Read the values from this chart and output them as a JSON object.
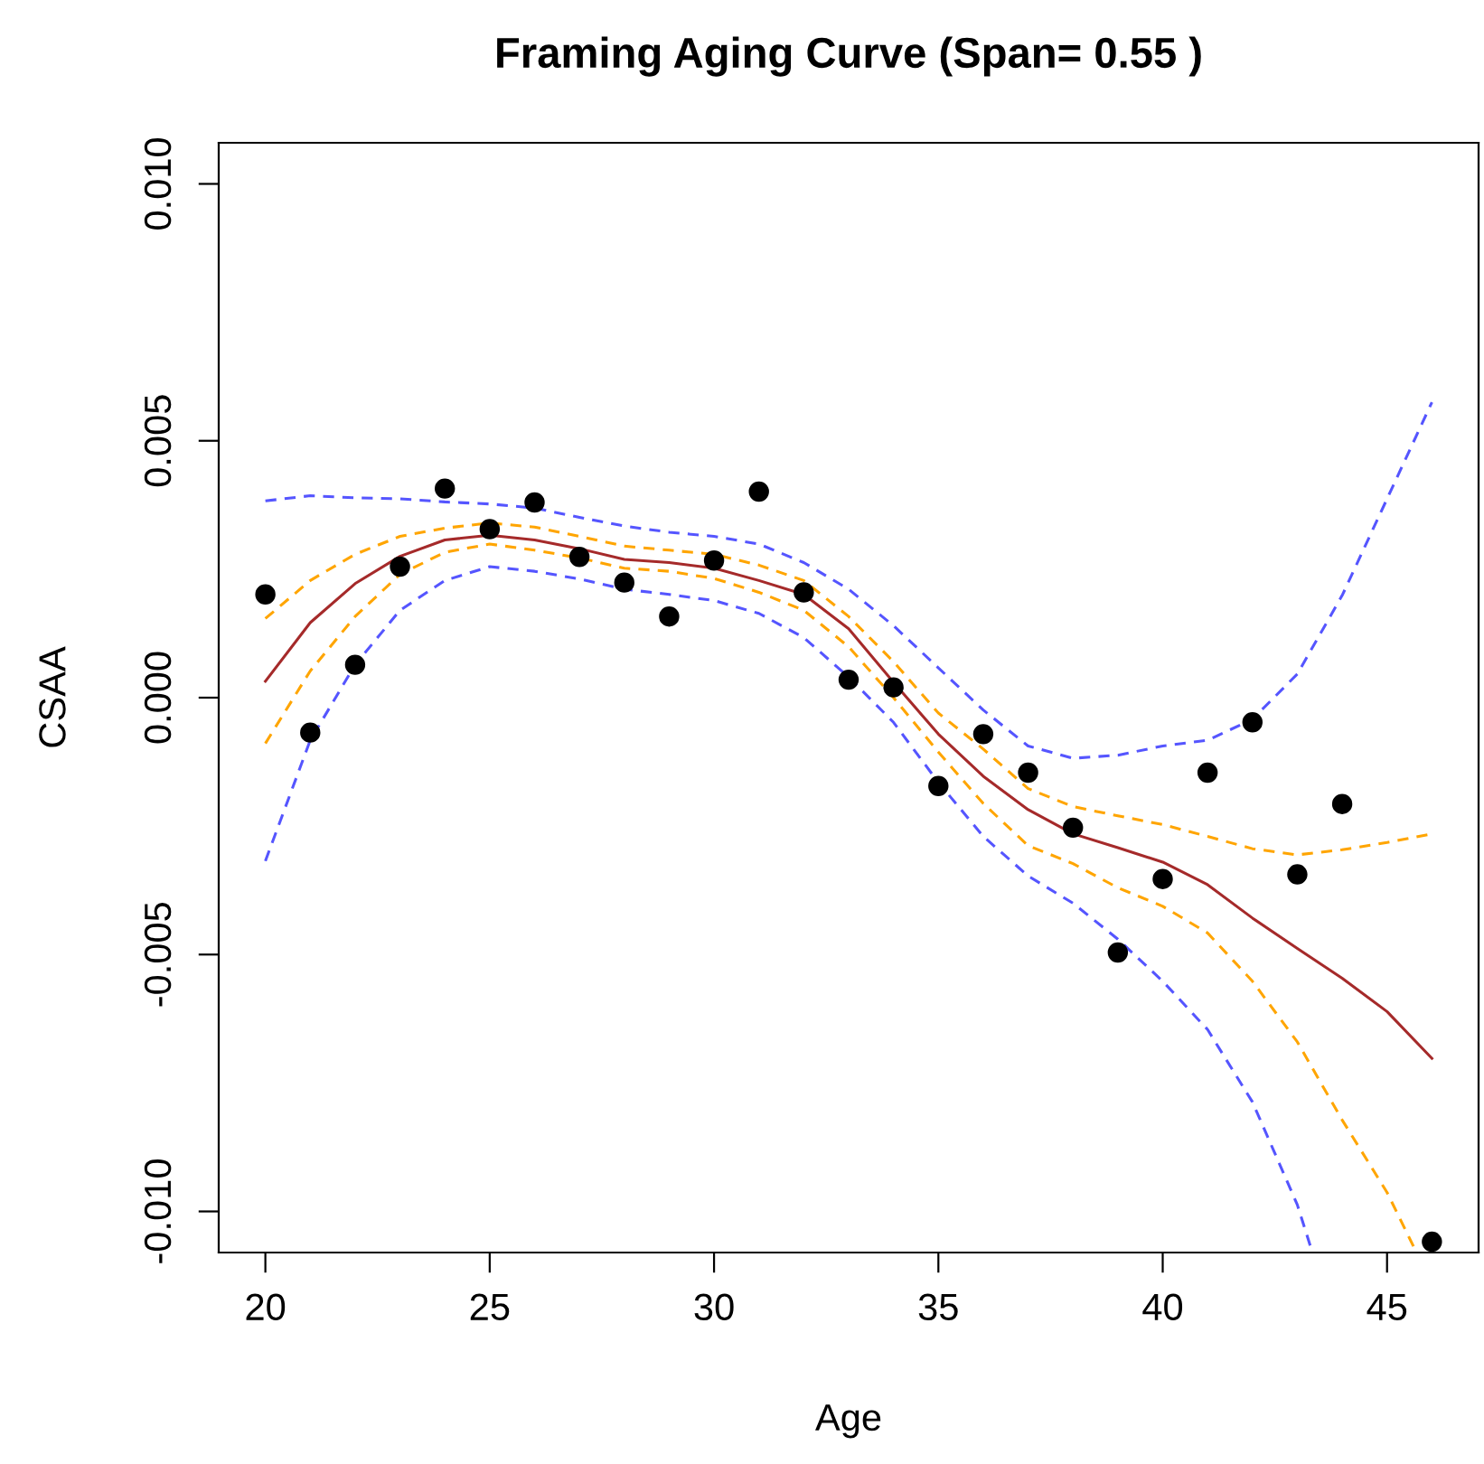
{
  "chart_data": {
    "type": "line",
    "title": "Framing Aging Curve (Span= 0.55 )",
    "xlabel": "Age",
    "ylabel": "CSAA",
    "xlim": [
      18.96,
      47.04
    ],
    "xticks": [
      20,
      25,
      30,
      35,
      40,
      45
    ],
    "ylim": [
      -0.0108,
      0.0108
    ],
    "yticks": [
      {
        "value": -0.01,
        "label": "-0.010"
      },
      {
        "value": -0.005,
        "label": "-0.005"
      },
      {
        "value": 0,
        "label": "0.000"
      },
      {
        "value": 0.005,
        "label": "0.005"
      },
      {
        "value": 0.01,
        "label": "0.010"
      }
    ],
    "grid": false,
    "legend": false,
    "series": [
      {
        "type": "scatter",
        "marker": "circle",
        "color": "#000000",
        "x": [
          20,
          21,
          22,
          23,
          24,
          25,
          26,
          27,
          28,
          29,
          30,
          31,
          32,
          33,
          34,
          35,
          36,
          37,
          38,
          39,
          40,
          41,
          42,
          43,
          44,
          46
        ],
        "values": [
          0.00201,
          -0.00068,
          0.00064,
          0.00255,
          0.00407,
          0.00328,
          0.0038,
          0.00274,
          0.00224,
          0.00158,
          0.00267,
          0.00401,
          0.00205,
          0.00035,
          0.0002,
          -0.00172,
          -0.00071,
          -0.00146,
          -0.00253,
          -0.00496,
          -0.00353,
          -0.00146,
          -0.00048,
          -0.00344,
          -0.00207,
          -0.01059
        ]
      },
      {
        "line_style": "solid",
        "color": "#a52a2a",
        "x": [
          20,
          21,
          22,
          23,
          24,
          25,
          26,
          27,
          28,
          29,
          30,
          31,
          32,
          33,
          34,
          35,
          36,
          37,
          38,
          39,
          40,
          41,
          42,
          43,
          44,
          45,
          46
        ],
        "values": [
          0.00032,
          0.00146,
          0.00222,
          0.00275,
          0.00307,
          0.00316,
          0.00307,
          0.0029,
          0.00269,
          0.00263,
          0.00252,
          0.00228,
          0.00201,
          0.00134,
          0.0003,
          -0.00071,
          -0.00153,
          -0.00218,
          -0.00265,
          -0.00292,
          -0.0032,
          -0.00364,
          -0.00429,
          -0.00488,
          -0.00546,
          -0.00611,
          -0.00702
        ]
      },
      {
        "line_style": "dashed",
        "color": "#ffa500",
        "x": [
          20,
          21,
          22,
          23,
          24,
          25,
          26,
          27,
          28,
          29,
          30,
          31,
          32,
          33,
          34,
          35,
          36,
          37,
          38,
          39,
          40,
          41,
          42,
          43,
          44,
          45,
          46
        ],
        "values": [
          0.00154,
          0.00228,
          0.00279,
          0.00314,
          0.0033,
          0.0034,
          0.00332,
          0.00314,
          0.00295,
          0.00287,
          0.00279,
          0.00258,
          0.00228,
          0.00158,
          0.0007,
          -0.0003,
          -0.001,
          -0.00177,
          -0.00212,
          -0.0023,
          -0.00247,
          -0.0027,
          -0.00294,
          -0.00306,
          -0.00296,
          -0.00282,
          -0.00265
        ]
      },
      {
        "line_style": "dashed",
        "color": "#ffa500",
        "x": [
          20,
          21,
          22,
          23,
          24,
          25,
          26,
          27,
          28,
          29,
          30,
          31,
          32,
          33,
          34,
          35,
          36,
          37,
          38,
          39,
          40,
          41,
          42,
          43,
          44,
          45,
          45.6
        ],
        "values": [
          -0.00089,
          0.00052,
          0.00158,
          0.0024,
          0.00283,
          0.00299,
          0.00287,
          0.00272,
          0.00252,
          0.00246,
          0.00232,
          0.00205,
          0.0017,
          0.00099,
          0.0,
          -0.00106,
          -0.00206,
          -0.00288,
          -0.00323,
          -0.0037,
          -0.00406,
          -0.00458,
          -0.00552,
          -0.0067,
          -0.00822,
          -0.00963,
          -0.0107
        ]
      },
      {
        "line_style": "dashed",
        "color": "#5555ff",
        "x": [
          20,
          21,
          22,
          23,
          24,
          25,
          26,
          27,
          28,
          29,
          30,
          31,
          32,
          33,
          34,
          35,
          36,
          37,
          38,
          39,
          40,
          41,
          42,
          43,
          44,
          45,
          46
        ],
        "values": [
          0.00383,
          0.00393,
          0.00389,
          0.00387,
          0.00381,
          0.00377,
          0.00369,
          0.00351,
          0.00334,
          0.00322,
          0.00314,
          0.00299,
          0.00263,
          0.00211,
          0.0014,
          0.00058,
          -0.00024,
          -0.00094,
          -0.00118,
          -0.00112,
          -0.00094,
          -0.00083,
          -0.00042,
          0.00046,
          0.00199,
          0.00387,
          0.00575
        ]
      },
      {
        "line_style": "dashed",
        "color": "#5555ff",
        "x": [
          20,
          21,
          22,
          23,
          24,
          25,
          26,
          27,
          28,
          29,
          30,
          31,
          32,
          33,
          34,
          35,
          36,
          37,
          38,
          39,
          40,
          41,
          42,
          43,
          43.3
        ],
        "values": [
          -0.00318,
          -0.00083,
          0.00064,
          0.0017,
          0.00228,
          0.00255,
          0.00246,
          0.00231,
          0.00211,
          0.00201,
          0.00189,
          0.00164,
          0.00117,
          0.0004,
          -0.00048,
          -0.00165,
          -0.0027,
          -0.00347,
          -0.004,
          -0.0047,
          -0.00552,
          -0.00646,
          -0.00787,
          -0.00987,
          -0.0107
        ]
      }
    ]
  }
}
